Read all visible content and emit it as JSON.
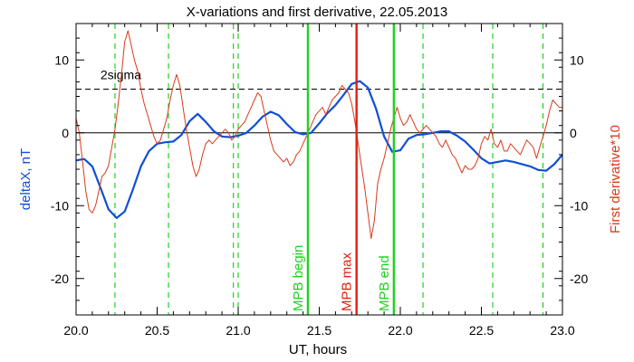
{
  "chart_data": {
    "type": "line",
    "title": "X-variations and first derivative, 22.05.2013",
    "xlabel": "UT, hours",
    "ylabel_left": "deltaX, nT",
    "ylabel_right": "First derivative*10",
    "xlim": [
      20.0,
      23.0
    ],
    "ylim": [
      -25,
      15
    ],
    "x_ticks": [
      20.0,
      20.5,
      21.0,
      21.5,
      22.0,
      22.5,
      23.0
    ],
    "x_tick_labels": [
      "20.0",
      "20.5",
      "21.0",
      "21.5",
      "22.0",
      "22.5",
      "23.0"
    ],
    "y_ticks": [
      10,
      0,
      -10,
      -20
    ],
    "y_tick_labels": [
      "10",
      "0",
      "-10",
      "-20"
    ],
    "colors": {
      "deltaX": "#0f4fd6",
      "derivative": "#d93a1a",
      "mpb_lines": "#22d022",
      "mpb_max_line": "#e02010",
      "threshold": "#000000",
      "zero_line": "#000000"
    },
    "threshold": {
      "label": "2sigma",
      "value": 6
    },
    "zero_line": 0,
    "vertical_markers": [
      {
        "x": 21.43,
        "label": "MPB begin",
        "style": "solid",
        "color": "#22d022"
      },
      {
        "x": 21.73,
        "label": "MPB max",
        "style": "solid",
        "color": "#e02010"
      },
      {
        "x": 21.96,
        "label": "MPB end",
        "style": "solid",
        "color": "#22d022"
      }
    ],
    "dashed_markers": [
      20.24,
      20.57,
      20.97,
      21.0,
      22.14,
      22.57,
      22.88
    ],
    "series": [
      {
        "axis": "left",
        "values": [
          [
            20.0,
            -3.8
          ],
          [
            20.05,
            -3.6
          ],
          [
            20.1,
            -4.6
          ],
          [
            20.15,
            -7.5
          ],
          [
            20.2,
            -10.5
          ],
          [
            20.25,
            -11.7
          ],
          [
            20.3,
            -10.8
          ],
          [
            20.35,
            -7.8
          ],
          [
            20.4,
            -4.6
          ],
          [
            20.45,
            -2.5
          ],
          [
            20.5,
            -1.5
          ],
          [
            20.55,
            -1.3
          ],
          [
            20.6,
            -1.2
          ],
          [
            20.65,
            -0.3
          ],
          [
            20.7,
            1.6
          ],
          [
            20.75,
            2.6
          ],
          [
            20.8,
            1.5
          ],
          [
            20.85,
            0.2
          ],
          [
            20.9,
            -0.5
          ],
          [
            20.95,
            -0.6
          ],
          [
            21.0,
            -0.4
          ],
          [
            21.05,
            0.0
          ],
          [
            21.1,
            1.0
          ],
          [
            21.15,
            2.2
          ],
          [
            21.2,
            2.9
          ],
          [
            21.25,
            2.4
          ],
          [
            21.3,
            1.2
          ],
          [
            21.35,
            0.1
          ],
          [
            21.4,
            -0.2
          ],
          [
            21.45,
            0.0
          ],
          [
            21.5,
            1.3
          ],
          [
            21.55,
            2.7
          ],
          [
            21.6,
            3.8
          ],
          [
            21.65,
            5.2
          ],
          [
            21.7,
            6.7
          ],
          [
            21.75,
            7.1
          ],
          [
            21.8,
            6.2
          ],
          [
            21.85,
            3.3
          ],
          [
            21.9,
            -0.5
          ],
          [
            21.95,
            -2.6
          ],
          [
            22.0,
            -2.4
          ],
          [
            22.05,
            -0.8
          ],
          [
            22.1,
            -0.3
          ],
          [
            22.15,
            -0.2
          ],
          [
            22.2,
            0.0
          ],
          [
            22.25,
            0.2
          ],
          [
            22.3,
            0.2
          ],
          [
            22.35,
            -0.4
          ],
          [
            22.4,
            -1.2
          ],
          [
            22.45,
            -2.3
          ],
          [
            22.5,
            -3.5
          ],
          [
            22.55,
            -4.2
          ],
          [
            22.6,
            -4.0
          ],
          [
            22.65,
            -3.8
          ],
          [
            22.7,
            -4.0
          ],
          [
            22.75,
            -4.3
          ],
          [
            22.8,
            -4.6
          ],
          [
            22.85,
            -5.1
          ],
          [
            22.9,
            -5.2
          ],
          [
            22.95,
            -4.3
          ],
          [
            23.0,
            -3.0
          ]
        ]
      },
      {
        "axis": "right",
        "values": [
          [
            20.0,
            2.0
          ],
          [
            20.02,
            0.0
          ],
          [
            20.04,
            -4.0
          ],
          [
            20.06,
            -8.0
          ],
          [
            20.08,
            -10.5
          ],
          [
            20.1,
            -11.0
          ],
          [
            20.12,
            -10.0
          ],
          [
            20.14,
            -8.0
          ],
          [
            20.16,
            -6.0
          ],
          [
            20.18,
            -5.5
          ],
          [
            20.2,
            -4.5
          ],
          [
            20.22,
            -2.0
          ],
          [
            20.24,
            0.5
          ],
          [
            20.26,
            4.0
          ],
          [
            20.28,
            8.0
          ],
          [
            20.3,
            12.5
          ],
          [
            20.32,
            14.0
          ],
          [
            20.34,
            12.0
          ],
          [
            20.36,
            10.0
          ],
          [
            20.38,
            8.5
          ],
          [
            20.4,
            6.0
          ],
          [
            20.42,
            4.0
          ],
          [
            20.44,
            2.5
          ],
          [
            20.46,
            1.0
          ],
          [
            20.48,
            -0.5
          ],
          [
            20.5,
            -1.5
          ],
          [
            20.52,
            -1.0
          ],
          [
            20.54,
            0.5
          ],
          [
            20.56,
            2.0
          ],
          [
            20.58,
            4.5
          ],
          [
            20.6,
            6.5
          ],
          [
            20.62,
            8.0
          ],
          [
            20.64,
            6.5
          ],
          [
            20.66,
            3.5
          ],
          [
            20.68,
            0.5
          ],
          [
            20.7,
            -2.0
          ],
          [
            20.72,
            -4.5
          ],
          [
            20.74,
            -6.0
          ],
          [
            20.76,
            -5.0
          ],
          [
            20.78,
            -3.0
          ],
          [
            20.8,
            -1.5
          ],
          [
            20.82,
            -1.0
          ],
          [
            20.84,
            -1.5
          ],
          [
            20.86,
            -1.0
          ],
          [
            20.88,
            -0.5
          ],
          [
            20.9,
            0.0
          ],
          [
            20.92,
            0.5
          ],
          [
            20.94,
            0.0
          ],
          [
            20.96,
            -1.0
          ],
          [
            20.98,
            -0.5
          ],
          [
            21.0,
            0.5
          ],
          [
            21.02,
            1.0
          ],
          [
            21.04,
            1.5
          ],
          [
            21.06,
            2.5
          ],
          [
            21.08,
            3.5
          ],
          [
            21.1,
            4.5
          ],
          [
            21.12,
            5.5
          ],
          [
            21.14,
            5.0
          ],
          [
            21.16,
            3.0
          ],
          [
            21.18,
            1.0
          ],
          [
            21.2,
            -1.0
          ],
          [
            21.22,
            -2.5
          ],
          [
            21.24,
            -3.0
          ],
          [
            21.26,
            -3.5
          ],
          [
            21.28,
            -4.0
          ],
          [
            21.3,
            -3.5
          ],
          [
            21.32,
            -4.5
          ],
          [
            21.34,
            -4.0
          ],
          [
            21.36,
            -3.0
          ],
          [
            21.38,
            -2.5
          ],
          [
            21.4,
            -1.5
          ],
          [
            21.42,
            -0.5
          ],
          [
            21.44,
            0.5
          ],
          [
            21.46,
            1.5
          ],
          [
            21.48,
            2.5
          ],
          [
            21.5,
            3.0
          ],
          [
            21.52,
            3.5
          ],
          [
            21.54,
            2.5
          ],
          [
            21.56,
            3.5
          ],
          [
            21.58,
            4.5
          ],
          [
            21.6,
            5.0
          ],
          [
            21.62,
            5.5
          ],
          [
            21.64,
            6.5
          ],
          [
            21.66,
            6.0
          ],
          [
            21.68,
            5.5
          ],
          [
            21.7,
            4.0
          ],
          [
            21.72,
            1.5
          ],
          [
            21.74,
            -1.5
          ],
          [
            21.76,
            -4.5
          ],
          [
            21.78,
            -7.5
          ],
          [
            21.8,
            -11.0
          ],
          [
            21.82,
            -14.5
          ],
          [
            21.84,
            -12.0
          ],
          [
            21.86,
            -7.0
          ],
          [
            21.88,
            -5.0
          ],
          [
            21.9,
            -3.5
          ],
          [
            21.92,
            -1.5
          ],
          [
            21.94,
            0.5
          ],
          [
            21.96,
            2.0
          ],
          [
            21.98,
            3.5
          ],
          [
            22.0,
            2.0
          ],
          [
            22.02,
            1.0
          ],
          [
            22.04,
            1.5
          ],
          [
            22.06,
            2.5
          ],
          [
            22.08,
            1.5
          ],
          [
            22.1,
            0.5
          ],
          [
            22.12,
            0.0
          ],
          [
            22.14,
            0.5
          ],
          [
            22.16,
            1.0
          ],
          [
            22.18,
            0.5
          ],
          [
            22.2,
            0.0
          ],
          [
            22.22,
            -0.5
          ],
          [
            22.24,
            -1.5
          ],
          [
            22.26,
            -2.0
          ],
          [
            22.28,
            -1.0
          ],
          [
            22.3,
            -2.0
          ],
          [
            22.32,
            -3.0
          ],
          [
            22.34,
            -3.5
          ],
          [
            22.36,
            -4.5
          ],
          [
            22.38,
            -5.5
          ],
          [
            22.4,
            -4.5
          ],
          [
            22.42,
            -5.0
          ],
          [
            22.44,
            -5.0
          ],
          [
            22.46,
            -4.5
          ],
          [
            22.48,
            -3.5
          ],
          [
            22.5,
            -1.5
          ],
          [
            22.52,
            -0.5
          ],
          [
            22.54,
            -1.0
          ],
          [
            22.56,
            0.5
          ],
          [
            22.58,
            -1.5
          ],
          [
            22.6,
            -2.0
          ],
          [
            22.62,
            -1.0
          ],
          [
            22.64,
            -2.5
          ],
          [
            22.66,
            -2.5
          ],
          [
            22.68,
            -1.5
          ],
          [
            22.7,
            -2.0
          ],
          [
            22.72,
            -2.5
          ],
          [
            22.74,
            -3.0
          ],
          [
            22.76,
            -2.0
          ],
          [
            22.78,
            -1.0
          ],
          [
            22.8,
            -1.5
          ],
          [
            22.82,
            -2.0
          ],
          [
            22.84,
            -3.5
          ],
          [
            22.86,
            -2.0
          ],
          [
            22.88,
            -0.5
          ],
          [
            22.9,
            1.0
          ],
          [
            22.92,
            3.0
          ],
          [
            22.94,
            4.5
          ],
          [
            22.96,
            4.0
          ],
          [
            22.98,
            3.5
          ],
          [
            23.0,
            3.5
          ]
        ]
      }
    ]
  }
}
